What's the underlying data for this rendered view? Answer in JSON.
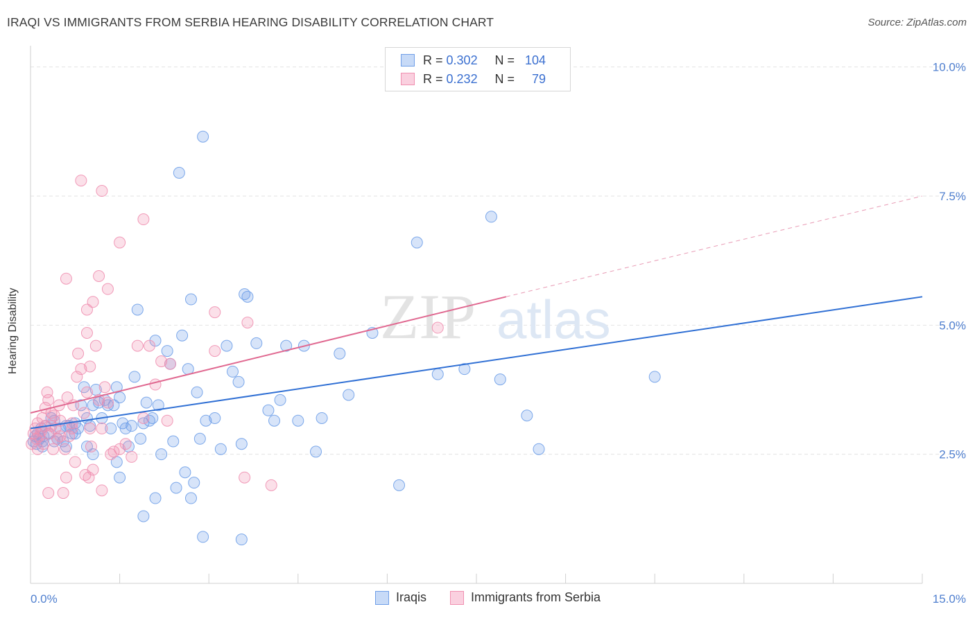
{
  "header": {
    "title": "IRAQI VS IMMIGRANTS FROM SERBIA HEARING DISABILITY CORRELATION CHART",
    "source": "Source: ZipAtlas.com"
  },
  "watermark": {
    "zip": "ZIP",
    "atlas": "atlas"
  },
  "legend": {
    "rows": [
      {
        "r_label": "R =",
        "r_value": "0.302",
        "n_label": "N =",
        "n_value": "104",
        "color": "#6e9ee8"
      },
      {
        "r_label": "R =",
        "r_value": "0.232",
        "n_label": "N =",
        "n_value": "79",
        "color": "#f08fb0"
      }
    ]
  },
  "bottom_legend": [
    {
      "label": "Iraqis",
      "color": "#6e9ee8"
    },
    {
      "label": "Immigrants from Serbia",
      "color": "#f08fb0"
    }
  ],
  "chart_data": {
    "type": "scatter",
    "title": "IRAQI VS IMMIGRANTS FROM SERBIA HEARING DISABILITY CORRELATION CHART",
    "xlabel": "",
    "ylabel": "Hearing Disability",
    "xlim": [
      0,
      15
    ],
    "ylim": [
      0,
      10.25
    ],
    "x_tick_labels": [
      {
        "value": 0,
        "label": "0.0%"
      },
      {
        "value": 15,
        "label": "15.0%"
      }
    ],
    "y_tick_labels": [
      {
        "value": 2.5,
        "label": "2.5%"
      },
      {
        "value": 5.0,
        "label": "5.0%"
      },
      {
        "value": 7.5,
        "label": "7.5%"
      },
      {
        "value": 10.0,
        "label": "10.0%"
      }
    ],
    "grid": true,
    "series": [
      {
        "name": "Iraqis",
        "color": "#6e9ee8",
        "trend": {
          "x0": 0,
          "y0": 3.0,
          "x1": 15,
          "y1": 5.55
        },
        "points": [
          [
            0.05,
            2.75
          ],
          [
            0.08,
            2.85
          ],
          [
            0.1,
            2.7
          ],
          [
            0.12,
            2.9
          ],
          [
            0.15,
            2.8
          ],
          [
            0.18,
            3.0
          ],
          [
            0.2,
            2.75
          ],
          [
            0.22,
            2.85
          ],
          [
            0.25,
            3.05
          ],
          [
            0.3,
            2.9
          ],
          [
            0.35,
            3.2
          ],
          [
            0.4,
            3.15
          ],
          [
            0.45,
            2.8
          ],
          [
            0.5,
            3.0
          ],
          [
            0.55,
            2.75
          ],
          [
            0.6,
            2.65
          ],
          [
            0.65,
            3.05
          ],
          [
            0.7,
            2.9
          ],
          [
            0.75,
            3.1
          ],
          [
            0.8,
            3.0
          ],
          [
            0.85,
            3.45
          ],
          [
            0.9,
            3.8
          ],
          [
            0.95,
            3.2
          ],
          [
            1.0,
            3.05
          ],
          [
            1.05,
            3.45
          ],
          [
            1.1,
            3.75
          ],
          [
            1.15,
            3.5
          ],
          [
            1.2,
            3.2
          ],
          [
            1.25,
            3.55
          ],
          [
            1.3,
            3.45
          ],
          [
            1.35,
            3.0
          ],
          [
            1.4,
            3.45
          ],
          [
            1.45,
            3.8
          ],
          [
            1.5,
            3.6
          ],
          [
            1.55,
            3.1
          ],
          [
            1.6,
            3.0
          ],
          [
            1.65,
            2.65
          ],
          [
            1.7,
            3.05
          ],
          [
            1.75,
            4.0
          ],
          [
            1.8,
            5.3
          ],
          [
            1.85,
            2.8
          ],
          [
            1.9,
            3.1
          ],
          [
            1.95,
            3.5
          ],
          [
            2.0,
            3.15
          ],
          [
            2.05,
            3.2
          ],
          [
            2.1,
            4.7
          ],
          [
            2.15,
            3.45
          ],
          [
            2.2,
            2.5
          ],
          [
            2.3,
            4.5
          ],
          [
            2.35,
            4.25
          ],
          [
            2.4,
            2.75
          ],
          [
            2.45,
            1.85
          ],
          [
            2.55,
            4.8
          ],
          [
            2.6,
            2.15
          ],
          [
            2.65,
            4.15
          ],
          [
            2.7,
            5.5
          ],
          [
            2.75,
            1.95
          ],
          [
            2.8,
            3.7
          ],
          [
            2.85,
            2.8
          ],
          [
            2.9,
            0.9
          ],
          [
            2.95,
            3.15
          ],
          [
            2.5,
            7.95
          ],
          [
            2.9,
            8.65
          ],
          [
            3.1,
            3.2
          ],
          [
            3.2,
            2.6
          ],
          [
            3.4,
            4.1
          ],
          [
            3.5,
            3.9
          ],
          [
            3.55,
            2.7
          ],
          [
            3.6,
            5.6
          ],
          [
            3.65,
            5.55
          ],
          [
            3.8,
            4.65
          ],
          [
            4.0,
            3.35
          ],
          [
            4.2,
            3.55
          ],
          [
            4.3,
            4.6
          ],
          [
            4.5,
            3.15
          ],
          [
            4.6,
            4.6
          ],
          [
            4.8,
            2.55
          ],
          [
            4.9,
            3.2
          ],
          [
            5.2,
            4.45
          ],
          [
            5.35,
            3.65
          ],
          [
            5.75,
            4.85
          ],
          [
            6.2,
            1.9
          ],
          [
            6.5,
            6.6
          ],
          [
            6.85,
            4.05
          ],
          [
            7.3,
            4.15
          ],
          [
            7.75,
            7.1
          ],
          [
            7.9,
            3.95
          ],
          [
            8.35,
            3.25
          ],
          [
            8.55,
            2.6
          ],
          [
            10.5,
            4.0
          ],
          [
            4.1,
            3.15
          ],
          [
            3.3,
            4.6
          ],
          [
            1.9,
            1.3
          ],
          [
            2.7,
            1.65
          ],
          [
            3.55,
            0.85
          ],
          [
            2.1,
            1.65
          ],
          [
            1.5,
            2.05
          ],
          [
            1.05,
            2.5
          ],
          [
            0.95,
            2.65
          ],
          [
            1.45,
            2.35
          ],
          [
            0.4,
            2.75
          ],
          [
            0.2,
            2.65
          ],
          [
            0.6,
            3.05
          ],
          [
            0.75,
            2.9
          ]
        ]
      },
      {
        "name": "Immigrants from Serbia",
        "color": "#f08fb0",
        "trend": {
          "x0": 0,
          "y0": 3.3,
          "x1": 8.0,
          "y1": 5.55
        },
        "trend_ext": {
          "x0": 8.0,
          "y0": 5.55,
          "x1": 15,
          "y1": 7.5
        },
        "points": [
          [
            0.02,
            2.7
          ],
          [
            0.05,
            2.9
          ],
          [
            0.08,
            3.0
          ],
          [
            0.1,
            2.8
          ],
          [
            0.12,
            3.1
          ],
          [
            0.15,
            2.85
          ],
          [
            0.18,
            2.95
          ],
          [
            0.2,
            3.2
          ],
          [
            0.22,
            2.7
          ],
          [
            0.25,
            3.05
          ],
          [
            0.28,
            3.7
          ],
          [
            0.3,
            3.55
          ],
          [
            0.32,
            2.9
          ],
          [
            0.35,
            3.3
          ],
          [
            0.38,
            2.6
          ],
          [
            0.4,
            3.25
          ],
          [
            0.42,
            3.0
          ],
          [
            0.45,
            2.8
          ],
          [
            0.48,
            3.45
          ],
          [
            0.5,
            3.15
          ],
          [
            0.55,
            1.75
          ],
          [
            0.58,
            2.6
          ],
          [
            0.6,
            2.05
          ],
          [
            0.62,
            3.6
          ],
          [
            0.65,
            2.85
          ],
          [
            0.7,
            3.1
          ],
          [
            0.72,
            3.45
          ],
          [
            0.75,
            2.35
          ],
          [
            0.78,
            4.0
          ],
          [
            0.8,
            4.45
          ],
          [
            0.85,
            4.15
          ],
          [
            0.9,
            3.3
          ],
          [
            0.92,
            2.1
          ],
          [
            0.95,
            3.7
          ],
          [
            0.98,
            2.05
          ],
          [
            1.0,
            3.0
          ],
          [
            1.02,
            2.65
          ],
          [
            1.05,
            2.2
          ],
          [
            1.1,
            4.6
          ],
          [
            1.15,
            3.55
          ],
          [
            1.2,
            1.8
          ],
          [
            1.25,
            3.8
          ],
          [
            1.3,
            3.5
          ],
          [
            1.35,
            2.5
          ],
          [
            1.4,
            2.55
          ],
          [
            1.5,
            2.6
          ],
          [
            1.6,
            2.7
          ],
          [
            1.7,
            2.45
          ],
          [
            1.8,
            4.6
          ],
          [
            1.9,
            3.2
          ],
          [
            2.0,
            4.6
          ],
          [
            2.1,
            3.85
          ],
          [
            2.2,
            4.3
          ],
          [
            2.3,
            3.15
          ],
          [
            2.35,
            4.25
          ],
          [
            0.85,
            7.8
          ],
          [
            1.2,
            7.6
          ],
          [
            1.9,
            7.05
          ],
          [
            1.5,
            6.6
          ],
          [
            0.6,
            5.9
          ],
          [
            1.15,
            5.95
          ],
          [
            1.3,
            5.7
          ],
          [
            1.05,
            5.45
          ],
          [
            0.95,
            5.3
          ],
          [
            0.95,
            4.85
          ],
          [
            3.1,
            5.25
          ],
          [
            3.65,
            5.05
          ],
          [
            3.1,
            4.5
          ],
          [
            3.6,
            2.05
          ],
          [
            4.05,
            1.9
          ],
          [
            6.85,
            4.95
          ],
          [
            0.3,
            1.75
          ],
          [
            0.12,
            2.6
          ],
          [
            0.35,
            3.05
          ],
          [
            0.5,
            2.85
          ],
          [
            0.7,
            3.0
          ],
          [
            1.0,
            4.2
          ],
          [
            1.2,
            3.0
          ],
          [
            0.25,
            3.4
          ]
        ]
      }
    ]
  }
}
